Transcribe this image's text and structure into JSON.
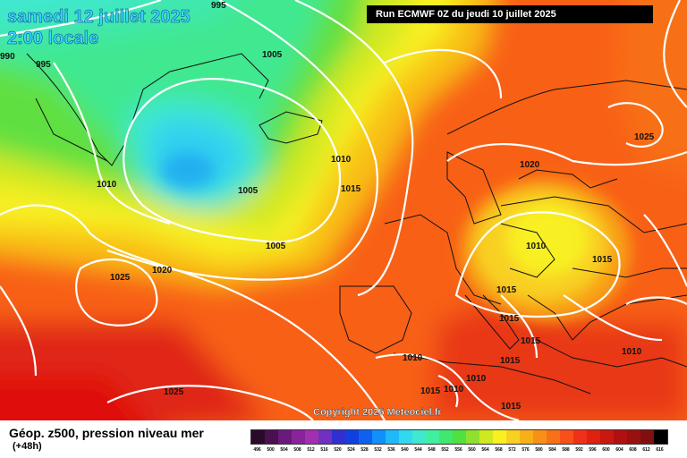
{
  "header": {
    "date": "samedi 12 juillet 2025",
    "time": "2:00 locale",
    "run": "Run ECMWF 0Z du jeudi 10 juillet 2025"
  },
  "copyright": "Copyright 2025 Meteociel.fr",
  "legend": {
    "title": "Géop. z500, pression niveau mer",
    "subtitle": "(+48h)",
    "scale_values": [
      "496",
      "500",
      "504",
      "508",
      "512",
      "516",
      "520",
      "524",
      "528",
      "532",
      "536",
      "540",
      "544",
      "548",
      "552",
      "556",
      "560",
      "564",
      "568",
      "572",
      "576",
      "580",
      "584",
      "588",
      "592",
      "596",
      "600",
      "604",
      "608",
      "612",
      "616"
    ],
    "scale_colors": [
      "#2a0a2a",
      "#4a1050",
      "#6a1a7a",
      "#8a229a",
      "#a030b0",
      "#7030c0",
      "#3030d0",
      "#1040e0",
      "#1060f0",
      "#1090f8",
      "#20b8f8",
      "#30d8f0",
      "#40e8d0",
      "#40f0a0",
      "#40e870",
      "#50e040",
      "#90e030",
      "#d0e820",
      "#f8f020",
      "#f8d020",
      "#f8b018",
      "#f89018",
      "#f87018",
      "#f85018",
      "#f03018",
      "#e02010",
      "#c81810",
      "#b01010",
      "#981010",
      "#801010",
      "#000000"
    ]
  },
  "isobar_labels": [
    {
      "text": "995"
    },
    {
      "text": "990"
    },
    {
      "text": "995"
    },
    {
      "text": "1005"
    },
    {
      "text": "1010"
    },
    {
      "text": "1005"
    },
    {
      "text": "1010"
    },
    {
      "text": "1015"
    },
    {
      "text": "1005"
    },
    {
      "text": "1020"
    },
    {
      "text": "1025"
    },
    {
      "text": "1025"
    },
    {
      "text": "1020"
    },
    {
      "text": "1010"
    },
    {
      "text": "1015"
    },
    {
      "text": "1015"
    },
    {
      "text": "1015"
    },
    {
      "text": "1015"
    },
    {
      "text": "1010"
    },
    {
      "text": "1015"
    },
    {
      "text": "1010"
    },
    {
      "text": "1015"
    },
    {
      "text": "1010"
    },
    {
      "text": "1015"
    },
    {
      "text": "1025"
    },
    {
      "text": "1010"
    }
  ]
}
